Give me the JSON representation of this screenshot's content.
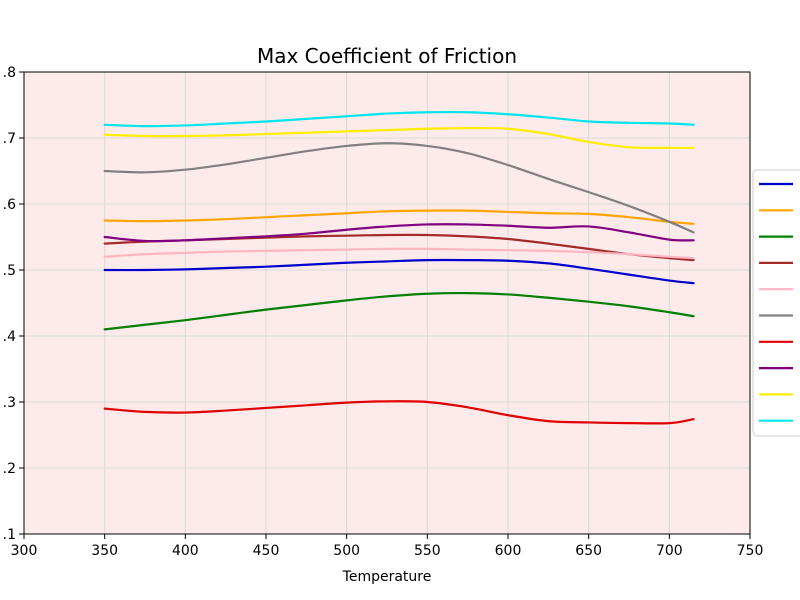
{
  "chart_data": {
    "type": "line",
    "title": "Max Coefficient of Friction",
    "xlabel": "Temperature",
    "ylabel": "",
    "xlim": [
      300,
      750
    ],
    "ylim": [
      0.1,
      0.8
    ],
    "xticks": [
      "300",
      "350",
      "400",
      "450",
      "500",
      "550",
      "600",
      "650",
      "700",
      "750"
    ],
    "yticks": [
      ".1",
      ".2",
      ".3",
      ".4",
      ".5",
      ".6",
      ".7",
      ".8"
    ],
    "grid": true,
    "legend_placement": "right",
    "plot_background": "#fdeaea",
    "x": [
      350,
      375,
      400,
      425,
      450,
      475,
      500,
      525,
      550,
      575,
      600,
      625,
      650,
      675,
      700,
      715
    ],
    "series": [
      {
        "color": "#0000cc",
        "values": [
          0.5,
          0.5,
          0.501,
          0.503,
          0.505,
          0.508,
          0.511,
          0.513,
          0.515,
          0.515,
          0.514,
          0.51,
          0.502,
          0.493,
          0.484,
          0.48
        ]
      },
      {
        "color": "#ffa500",
        "values": [
          0.575,
          0.574,
          0.575,
          0.577,
          0.58,
          0.583,
          0.586,
          0.589,
          0.59,
          0.59,
          0.588,
          0.586,
          0.585,
          0.58,
          0.573,
          0.57
        ]
      },
      {
        "color": "#008000",
        "values": [
          0.41,
          0.417,
          0.424,
          0.432,
          0.44,
          0.447,
          0.454,
          0.46,
          0.464,
          0.465,
          0.463,
          0.458,
          0.452,
          0.445,
          0.436,
          0.43
        ]
      },
      {
        "color": "#a52a2a",
        "values": [
          0.54,
          0.543,
          0.545,
          0.547,
          0.549,
          0.551,
          0.552,
          0.553,
          0.553,
          0.551,
          0.547,
          0.54,
          0.532,
          0.524,
          0.518,
          0.515
        ]
      },
      {
        "color": "#ffb6c1",
        "values": [
          0.52,
          0.524,
          0.526,
          0.528,
          0.529,
          0.53,
          0.531,
          0.532,
          0.532,
          0.531,
          0.53,
          0.529,
          0.527,
          0.524,
          0.52,
          0.518
        ]
      },
      {
        "color": "#808080",
        "values": [
          0.65,
          0.648,
          0.652,
          0.66,
          0.67,
          0.68,
          0.688,
          0.692,
          0.688,
          0.677,
          0.659,
          0.638,
          0.618,
          0.597,
          0.573,
          0.557
        ]
      },
      {
        "color": "#e00000",
        "values": [
          0.29,
          0.285,
          0.284,
          0.287,
          0.291,
          0.295,
          0.299,
          0.301,
          0.3,
          0.292,
          0.28,
          0.271,
          0.269,
          0.268,
          0.268,
          0.274
        ]
      },
      {
        "color": "#800080",
        "values": [
          0.55,
          0.544,
          0.545,
          0.548,
          0.551,
          0.555,
          0.561,
          0.566,
          0.569,
          0.569,
          0.567,
          0.564,
          0.566,
          0.557,
          0.546,
          0.545
        ]
      },
      {
        "color": "#ffee00",
        "values": [
          0.705,
          0.703,
          0.703,
          0.704,
          0.706,
          0.708,
          0.71,
          0.712,
          0.714,
          0.715,
          0.714,
          0.706,
          0.694,
          0.686,
          0.685,
          0.685
        ]
      },
      {
        "color": "#00e5ee",
        "values": [
          0.72,
          0.718,
          0.719,
          0.722,
          0.725,
          0.729,
          0.733,
          0.737,
          0.739,
          0.739,
          0.736,
          0.731,
          0.725,
          0.723,
          0.722,
          0.72
        ]
      }
    ]
  }
}
